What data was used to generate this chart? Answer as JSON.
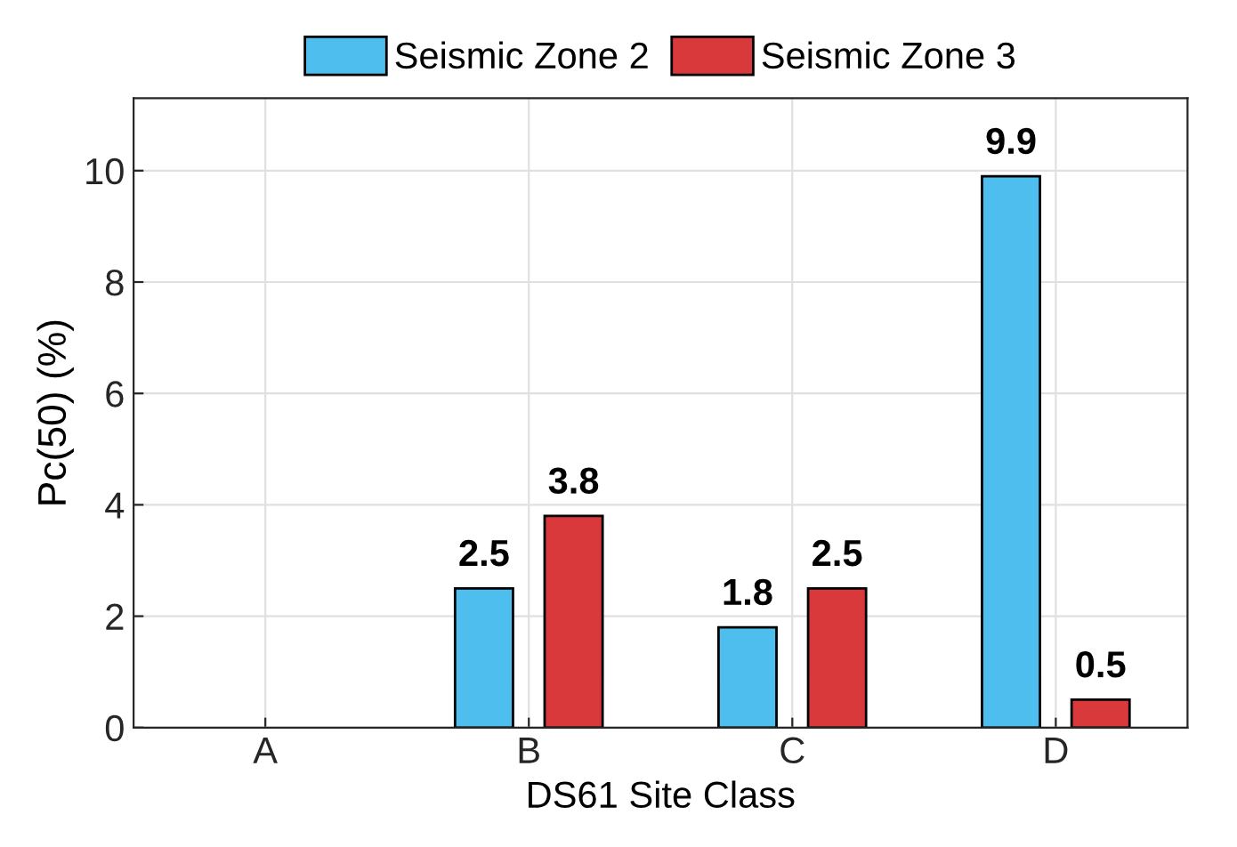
{
  "chart_data": {
    "type": "bar",
    "xlabel": "DS61 Site Class",
    "ylabel": "Pc(50) (%)",
    "categories": [
      "A",
      "B",
      "C",
      "D"
    ],
    "series": [
      {
        "name": "Seismic Zone 2",
        "color": "#4dbeee",
        "values": [
          null,
          2.5,
          1.8,
          9.9
        ]
      },
      {
        "name": "Seismic Zone 3",
        "color": "#d9393b",
        "values": [
          null,
          3.8,
          2.5,
          0.5
        ]
      }
    ],
    "ylim": [
      0,
      11.3
    ],
    "yticks": [
      0,
      2,
      4,
      6,
      8,
      10
    ],
    "grid": true,
    "legend": "top",
    "data_labels": true
  }
}
